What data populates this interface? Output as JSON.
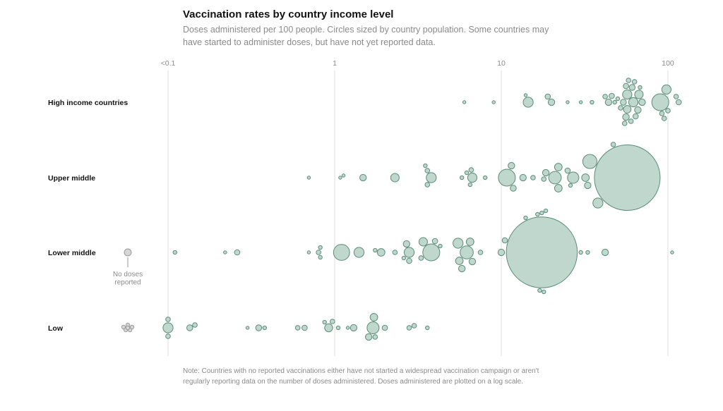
{
  "chart_data": {
    "type": "scatter",
    "title": "Vaccination rates by country income level",
    "subtitle": "Doses administered per 100 people. Circles sized by country population. Some countries may have started to administer doses, but have not yet reported data.",
    "note": "Note: Countries with no reported vaccinations either have not started a widespread vaccination campaign or aren't regularly reporting data on the number of doses administered. Doses administered are plotted on a log scale.",
    "x_scale": "log",
    "x_ticks": [
      {
        "value": 0.1,
        "label": "<0.1"
      },
      {
        "value": 1,
        "label": "1"
      },
      {
        "value": 10,
        "label": "10"
      },
      {
        "value": 100,
        "label": "100"
      }
    ],
    "xlim": [
      0.1,
      120
    ],
    "no_dose_label": [
      "No doses",
      "reported"
    ],
    "colors": {
      "point_fill": "#c0d7ce",
      "point_stroke": "#5a8c79",
      "nodose_fill": "#d6d6d6",
      "nodose_stroke": "#9a9a9a",
      "gridline": "#dcdcdc"
    },
    "rows": [
      {
        "name": "High income countries",
        "points": [
          {
            "x": 6,
            "size": 1
          },
          {
            "x": 9,
            "size": 1
          },
          {
            "x": 14,
            "size": 1
          },
          {
            "x": 14.5,
            "size": 14
          },
          {
            "x": 19,
            "size": 4
          },
          {
            "x": 20,
            "size": 6
          },
          {
            "x": 25,
            "size": 1
          },
          {
            "x": 30,
            "size": 1
          },
          {
            "x": 35,
            "size": 2
          },
          {
            "x": 42,
            "size": 3
          },
          {
            "x": 44,
            "size": 6
          },
          {
            "x": 46,
            "size": 4
          },
          {
            "x": 48,
            "size": 2
          },
          {
            "x": 50,
            "size": 2
          },
          {
            "x": 52,
            "size": 3
          },
          {
            "x": 54,
            "size": 5
          },
          {
            "x": 55,
            "size": 3
          },
          {
            "x": 56,
            "size": 4
          },
          {
            "x": 57,
            "size": 8
          },
          {
            "x": 58,
            "size": 3
          },
          {
            "x": 60,
            "size": 3
          },
          {
            "x": 61,
            "size": 5
          },
          {
            "x": 62,
            "size": 12
          },
          {
            "x": 63,
            "size": 3
          },
          {
            "x": 64,
            "size": 4
          },
          {
            "x": 66,
            "size": 6
          },
          {
            "x": 67,
            "size": 10
          },
          {
            "x": 68,
            "size": 2
          },
          {
            "x": 70,
            "size": 6
          },
          {
            "x": 56,
            "size": 6
          },
          {
            "x": 57,
            "size": 12
          },
          {
            "x": 90,
            "size": 40
          },
          {
            "x": 92,
            "size": 3
          },
          {
            "x": 95,
            "size": 3
          },
          {
            "x": 98,
            "size": 12
          },
          {
            "x": 100,
            "size": 3
          },
          {
            "x": 112,
            "size": 3
          },
          {
            "x": 116,
            "size": 4
          }
        ]
      },
      {
        "name": "Upper middle",
        "points": [
          {
            "x": 0.7,
            "size": 1
          },
          {
            "x": 1.08,
            "size": 1
          },
          {
            "x": 1.13,
            "size": 1
          },
          {
            "x": 1.48,
            "size": 6
          },
          {
            "x": 2.3,
            "size": 10
          },
          {
            "x": 3.5,
            "size": 2
          },
          {
            "x": 3.6,
            "size": 3
          },
          {
            "x": 3.6,
            "size": 3
          },
          {
            "x": 3.8,
            "size": 14
          },
          {
            "x": 5.8,
            "size": 2
          },
          {
            "x": 6.2,
            "size": 2
          },
          {
            "x": 6.5,
            "size": 2
          },
          {
            "x": 6.6,
            "size": 3
          },
          {
            "x": 6.7,
            "size": 12
          },
          {
            "x": 8,
            "size": 2
          },
          {
            "x": 10.8,
            "size": 40
          },
          {
            "x": 11.5,
            "size": 6
          },
          {
            "x": 11.8,
            "size": 5
          },
          {
            "x": 13.5,
            "size": 6
          },
          {
            "x": 15.5,
            "size": 3
          },
          {
            "x": 18,
            "size": 3
          },
          {
            "x": 18.5,
            "size": 6
          },
          {
            "x": 21,
            "size": 22
          },
          {
            "x": 22,
            "size": 8
          },
          {
            "x": 22,
            "size": 8
          },
          {
            "x": 25,
            "size": 4
          },
          {
            "x": 26,
            "size": 2
          },
          {
            "x": 27,
            "size": 18
          },
          {
            "x": 32,
            "size": 8
          },
          {
            "x": 33,
            "size": 6
          },
          {
            "x": 34,
            "size": 28
          },
          {
            "x": 38,
            "size": 14
          },
          {
            "x": 47,
            "size": 3
          },
          {
            "x": 57,
            "size": 600
          }
        ]
      },
      {
        "name": "Lower middle",
        "points": [
          {
            "x": 0.11,
            "size": 2
          },
          {
            "x": 0.22,
            "size": 1
          },
          {
            "x": 0.26,
            "size": 4
          },
          {
            "x": 0.7,
            "size": 1
          },
          {
            "x": 0.8,
            "size": 3
          },
          {
            "x": 0.82,
            "size": 2
          },
          {
            "x": 0.82,
            "size": 2
          },
          {
            "x": 1.1,
            "size": 36
          },
          {
            "x": 1.4,
            "size": 14
          },
          {
            "x": 1.75,
            "size": 2
          },
          {
            "x": 1.9,
            "size": 8
          },
          {
            "x": 2.3,
            "size": 3
          },
          {
            "x": 2.6,
            "size": 2
          },
          {
            "x": 2.7,
            "size": 6
          },
          {
            "x": 2.8,
            "size": 14
          },
          {
            "x": 2.8,
            "size": 4
          },
          {
            "x": 3.3,
            "size": 3
          },
          {
            "x": 3.4,
            "size": 10
          },
          {
            "x": 3.8,
            "size": 40
          },
          {
            "x": 4,
            "size": 4
          },
          {
            "x": 4.3,
            "size": 2
          },
          {
            "x": 5.5,
            "size": 14
          },
          {
            "x": 5.6,
            "size": 8
          },
          {
            "x": 5.8,
            "size": 6
          },
          {
            "x": 6.2,
            "size": 24
          },
          {
            "x": 6.5,
            "size": 8
          },
          {
            "x": 6.7,
            "size": 6
          },
          {
            "x": 7.5,
            "size": 3
          },
          {
            "x": 10,
            "size": 6
          },
          {
            "x": 10.5,
            "size": 4
          },
          {
            "x": 14,
            "size": 2
          },
          {
            "x": 16.5,
            "size": 2
          },
          {
            "x": 17,
            "size": 2
          },
          {
            "x": 17.5,
            "size": 2
          },
          {
            "x": 18,
            "size": 2
          },
          {
            "x": 18.5,
            "size": 2
          },
          {
            "x": 17.5,
            "size": 700
          },
          {
            "x": 30,
            "size": 2
          },
          {
            "x": 33,
            "size": 2
          },
          {
            "x": 42,
            "size": 6
          },
          {
            "x": 106,
            "size": 1
          }
        ]
      },
      {
        "name": "Low",
        "points": [
          {
            "x": 0.1,
            "size": 14
          },
          {
            "x": 0.1,
            "size": 3
          },
          {
            "x": 0.1,
            "size": 3
          },
          {
            "x": 0.135,
            "size": 5
          },
          {
            "x": 0.145,
            "size": 3
          },
          {
            "x": 0.3,
            "size": 1
          },
          {
            "x": 0.35,
            "size": 5
          },
          {
            "x": 0.38,
            "size": 2
          },
          {
            "x": 0.6,
            "size": 3
          },
          {
            "x": 0.66,
            "size": 4
          },
          {
            "x": 0.87,
            "size": 2
          },
          {
            "x": 0.92,
            "size": 9
          },
          {
            "x": 0.97,
            "size": 3
          },
          {
            "x": 1.05,
            "size": 2
          },
          {
            "x": 1.2,
            "size": 1
          },
          {
            "x": 1.3,
            "size": 6
          },
          {
            "x": 1.6,
            "size": 6
          },
          {
            "x": 1.7,
            "size": 20
          },
          {
            "x": 1.72,
            "size": 8
          },
          {
            "x": 1.75,
            "size": 3
          },
          {
            "x": 2.0,
            "size": 4
          },
          {
            "x": 2.8,
            "size": 3
          },
          {
            "x": 3.0,
            "size": 3
          },
          {
            "x": 3.6,
            "size": 2
          }
        ],
        "no_dose_points": [
          {
            "size": 3
          },
          {
            "size": 3
          },
          {
            "size": 3
          },
          {
            "size": 3
          },
          {
            "size": 3
          },
          {
            "size": 3
          }
        ]
      }
    ],
    "lower_middle_no_dose_points": [
      {
        "size": 8
      }
    ]
  }
}
